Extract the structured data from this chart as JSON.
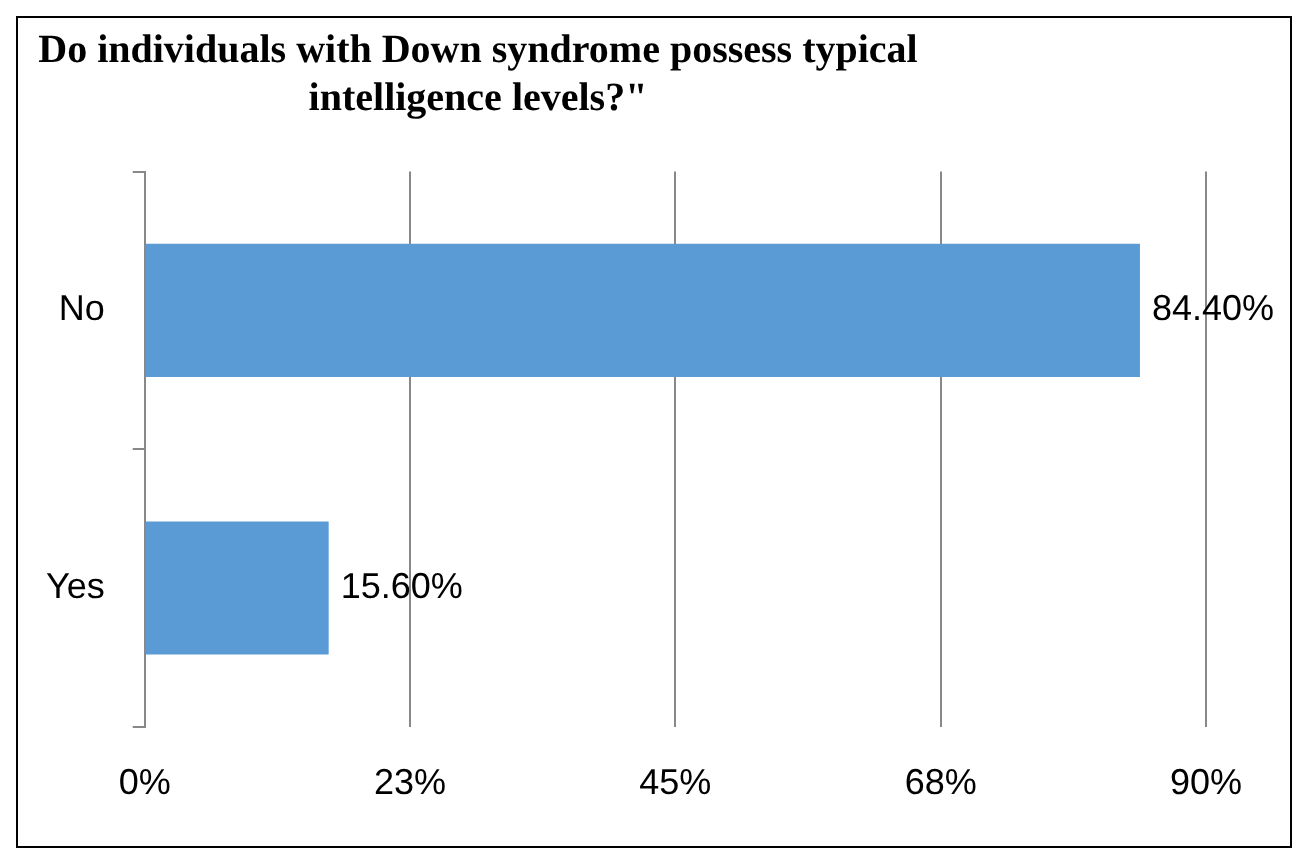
{
  "chart_data": {
    "type": "bar",
    "orientation": "horizontal",
    "title": "Do individuals  with Down syndrome possess typical intelligence levels?\"",
    "categories": [
      "No",
      "Yes"
    ],
    "values": [
      84.4,
      15.6
    ],
    "value_labels": [
      "84.40%",
      "15.60%"
    ],
    "color": "#5b9bd5",
    "xlim": [
      0,
      90
    ],
    "xticks": [
      {
        "value": 0,
        "label": "0%"
      },
      {
        "value": 22.5,
        "label": "23%"
      },
      {
        "value": 45,
        "label": "45%"
      },
      {
        "value": 67.5,
        "label": "68%"
      },
      {
        "value": 90,
        "label": "90%"
      }
    ],
    "grid": "x",
    "legend": false
  }
}
